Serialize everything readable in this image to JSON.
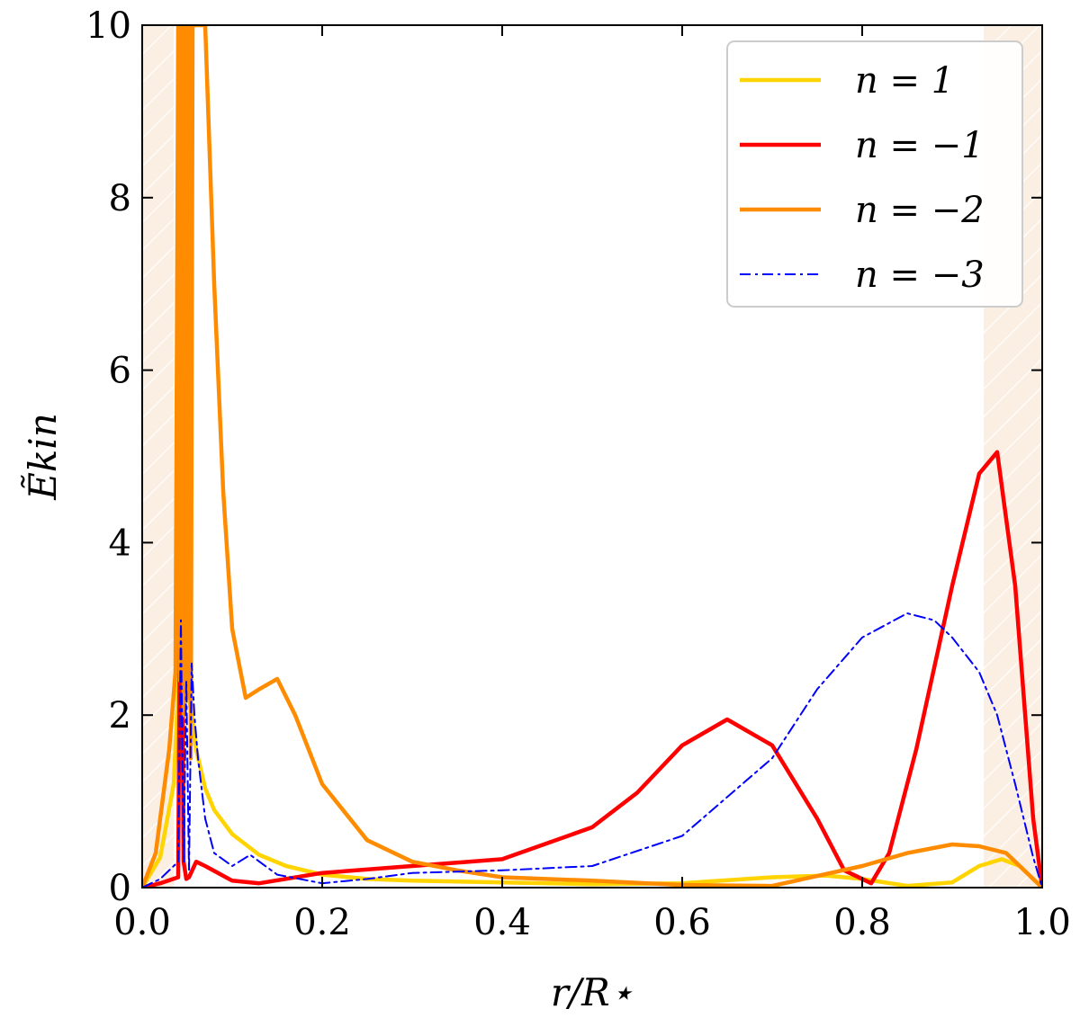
{
  "chart_data": {
    "type": "line",
    "xlabel": "r/R⋆",
    "ylabel": "Ẽkin",
    "xlim": [
      0.0,
      1.0
    ],
    "ylim": [
      0,
      10
    ],
    "xticks": [
      "0.0",
      "0.2",
      "0.4",
      "0.6",
      "0.8",
      "1.0"
    ],
    "yticks": [
      "0",
      "2",
      "4",
      "6",
      "8",
      "10"
    ],
    "grid": false,
    "legend_position": "top-right",
    "shaded_regions": [
      {
        "x": [
          0.0,
          0.035
        ],
        "color": "#fbeee2"
      },
      {
        "x": [
          0.935,
          1.0
        ],
        "color": "#fbeee2"
      }
    ],
    "series": [
      {
        "name": "n = 1",
        "color": "#ffd400",
        "style": "solid",
        "x": [
          0.0,
          0.02,
          0.035,
          0.04,
          0.045,
          0.05,
          0.055,
          0.06,
          0.07,
          0.08,
          0.1,
          0.13,
          0.16,
          0.2,
          0.25,
          0.3,
          0.4,
          0.5,
          0.6,
          0.7,
          0.76,
          0.8,
          0.85,
          0.9,
          0.93,
          0.955,
          0.975,
          1.0
        ],
        "y": [
          0.0,
          0.35,
          1.2,
          2.3,
          2.9,
          2.3,
          2.0,
          1.6,
          1.15,
          0.9,
          0.62,
          0.38,
          0.25,
          0.15,
          0.1,
          0.08,
          0.06,
          0.04,
          0.05,
          0.12,
          0.14,
          0.1,
          0.02,
          0.06,
          0.25,
          0.33,
          0.25,
          0.0
        ]
      },
      {
        "name": "n = −1",
        "color": "#ff0000",
        "style": "solid",
        "x": [
          0.0,
          0.02,
          0.04,
          0.043,
          0.046,
          0.049,
          0.052,
          0.06,
          0.07,
          0.1,
          0.13,
          0.2,
          0.3,
          0.4,
          0.5,
          0.55,
          0.6,
          0.65,
          0.7,
          0.75,
          0.78,
          0.81,
          0.83,
          0.86,
          0.9,
          0.93,
          0.95,
          0.97,
          0.99,
          1.0
        ],
        "y": [
          0.0,
          0.05,
          0.12,
          4.9,
          0.3,
          0.1,
          0.12,
          0.3,
          0.25,
          0.08,
          0.05,
          0.17,
          0.25,
          0.33,
          0.7,
          1.1,
          1.65,
          1.95,
          1.65,
          0.8,
          0.2,
          0.05,
          0.4,
          1.6,
          3.5,
          4.8,
          5.05,
          3.5,
          0.8,
          0.0
        ]
      },
      {
        "name": "n = −2",
        "color": "#ff8c00",
        "style": "solid",
        "x": [
          0.0,
          0.015,
          0.03,
          0.037,
          0.04,
          0.042,
          0.044,
          0.046,
          0.048,
          0.05,
          0.052,
          0.054,
          0.056,
          0.06,
          0.065,
          0.07,
          0.08,
          0.09,
          0.1,
          0.115,
          0.13,
          0.15,
          0.17,
          0.2,
          0.25,
          0.3,
          0.35,
          0.4,
          0.5,
          0.6,
          0.7,
          0.8,
          0.85,
          0.9,
          0.93,
          0.96,
          0.98,
          1.0
        ],
        "y": [
          0.0,
          0.4,
          1.6,
          2.5,
          10,
          2.4,
          10,
          2.0,
          10,
          2.2,
          10,
          1.5,
          10,
          10,
          10,
          10,
          7.0,
          4.6,
          3.0,
          2.2,
          2.3,
          2.42,
          2.0,
          1.2,
          0.55,
          0.3,
          0.2,
          0.12,
          0.08,
          0.03,
          0.02,
          0.25,
          0.4,
          0.5,
          0.48,
          0.4,
          0.2,
          0.0
        ]
      },
      {
        "name": "n = −3",
        "color": "#0000ff",
        "style": "dashdot",
        "x": [
          0.0,
          0.02,
          0.04,
          0.043,
          0.046,
          0.049,
          0.052,
          0.055,
          0.058,
          0.062,
          0.07,
          0.08,
          0.1,
          0.12,
          0.15,
          0.2,
          0.25,
          0.3,
          0.4,
          0.5,
          0.6,
          0.7,
          0.75,
          0.8,
          0.85,
          0.88,
          0.9,
          0.93,
          0.95,
          0.97,
          0.99,
          1.0
        ],
        "y": [
          0.0,
          0.1,
          0.3,
          3.1,
          0.3,
          2.4,
          0.2,
          2.6,
          2.0,
          1.5,
          0.8,
          0.4,
          0.25,
          0.38,
          0.15,
          0.05,
          0.1,
          0.17,
          0.2,
          0.25,
          0.6,
          1.5,
          2.3,
          2.9,
          3.18,
          3.1,
          2.9,
          2.5,
          2.0,
          1.2,
          0.35,
          0.0
        ]
      }
    ]
  }
}
